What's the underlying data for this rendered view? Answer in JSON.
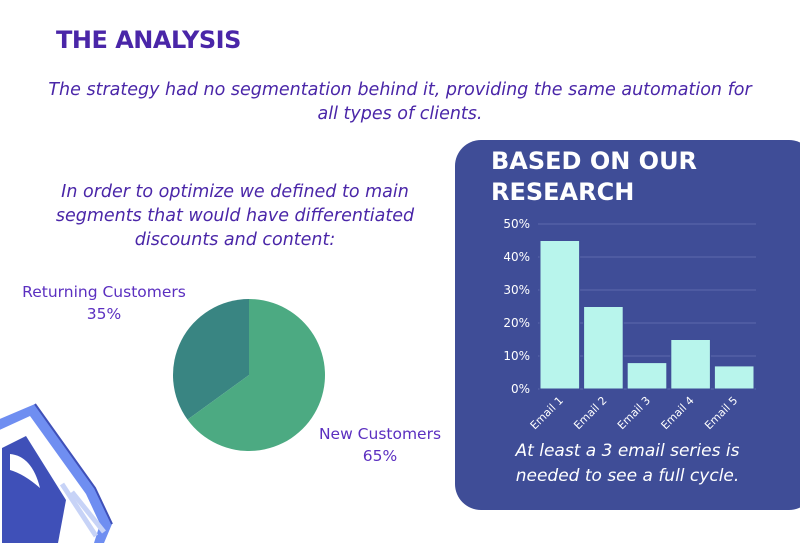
{
  "heading": "THE ANALYSIS",
  "intro": "The strategy had no segmentation behind it, providing the same automation for all types of clients.",
  "segments_text": "In order to optimize we defined to main segments that would have differentiated discounts and content:",
  "panel": {
    "title": "BASED ON OUR RESEARCH",
    "note": "At least a 3 email series is needed to see a full cycle."
  },
  "colors": {
    "heading": "#4a26a8",
    "panel_bg": "#3f4d97",
    "bar": "#b8f5ec",
    "pie_returning": "#398582",
    "pie_new": "#4caa82"
  },
  "chart_data": [
    {
      "type": "pie",
      "slices": [
        {
          "name": "Returning Customers",
          "value": 35,
          "label": "35%"
        },
        {
          "name": "New Customers",
          "value": 65,
          "label": "65%"
        }
      ]
    },
    {
      "type": "bar",
      "categories": [
        "Email 1",
        "Email 2",
        "Email 3",
        "Email 4",
        "Email 5"
      ],
      "values": [
        45,
        25,
        8,
        15,
        7
      ],
      "ylim": [
        0,
        50
      ],
      "yticks": [
        "0%",
        "10%",
        "20%",
        "30%",
        "40%",
        "50%"
      ],
      "grid": true
    }
  ]
}
